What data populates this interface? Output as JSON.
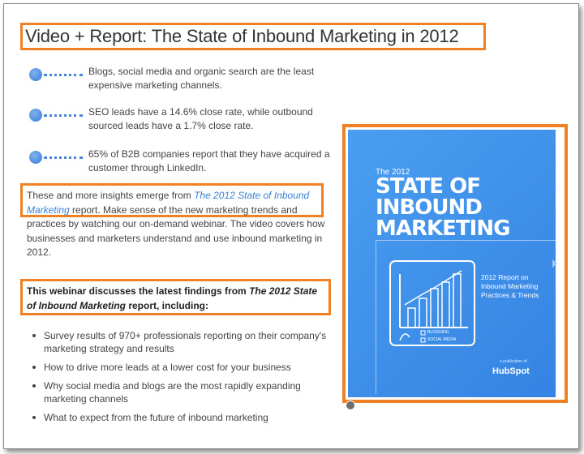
{
  "title": "Video + Report: The State of Inbound Marketing in 2012",
  "bullets": [
    "Blogs, social media and organic search are the least expensive marketing channels.",
    "SEO leads have a 14.6% close rate, while outbound sourced leads have a 1.7% close rate.",
    "65% of B2B companies report that they have acquired a customer through LinkedIn."
  ],
  "insight": {
    "before": "These and more insights emerge from ",
    "link": "The 2012 State of Inbound Marketing",
    "after": " report. Make sense of the new marketing trends and practices by watching our on-demand webinar. The video covers how businesses and marketers understand and use inbound marketing in 2012."
  },
  "webinar": {
    "before": "This webinar discusses the latest findings from ",
    "italic": "The 2012 State of Inbound Marketing",
    "after": " report, including:"
  },
  "list": [
    "Survey results of 970+ professionals reporting on their company's marketing strategy and results",
    "How to drive more leads at a lower cost for your business",
    "Why social media and blogs are the most rapidly expanding marketing channels",
    "What to expect from the future of inbound marketing"
  ],
  "cover": {
    "small_title": "The 2012",
    "line1": "STATE OF",
    "line2": "INBOUND",
    "line3": "MARKETING",
    "subtitle": "2012 Report on Inbound Marketing Practices & Trends",
    "legend_blogging": "BLOGGING",
    "legend_social": "SOCIAL MEDIA",
    "publication": "a publication of",
    "brand": "HubSpot"
  },
  "colors": {
    "highlight": "#f08024",
    "link": "#3b82d6",
    "cover_blue": "#3583e3"
  }
}
